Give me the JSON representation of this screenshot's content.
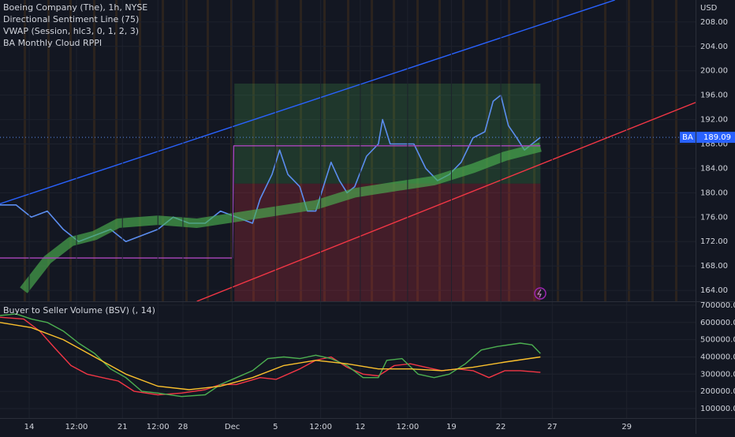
{
  "chart_data": [
    {
      "type": "line",
      "legend": [
        "Boeing Company (The), 1h, NYSE",
        "Directional Sentiment Line (75)",
        "VWAP (Session, hlc3, 0, 1, 2, 3)",
        "BA Monthly Cloud RPPI"
      ],
      "currency": "USD",
      "symbol": "BA",
      "xlim": [
        0,
        100
      ],
      "ylim": [
        162.2,
        211.6
      ],
      "yticks": [
        {
          "value": 208,
          "label": "208.00"
        },
        {
          "value": 204,
          "label": "204.00"
        },
        {
          "value": 200,
          "label": "200.00"
        },
        {
          "value": 196,
          "label": "196.00"
        },
        {
          "value": 192,
          "label": "192.00"
        },
        {
          "value": 188,
          "label": "188.00"
        },
        {
          "value": 184,
          "label": "184.00"
        },
        {
          "value": 180,
          "label": "180.00"
        },
        {
          "value": 176,
          "label": "176.00"
        },
        {
          "value": 172,
          "label": "172.00"
        },
        {
          "value": 168,
          "label": "168.00"
        },
        {
          "value": 164,
          "label": "164.00"
        }
      ],
      "zones": [
        {
          "color": "#4caf50",
          "x": [
            33.7,
            77.7
          ],
          "values": [
            197.9,
            181.5
          ]
        },
        {
          "color": "#f23645",
          "x": [
            33.7,
            77.7
          ],
          "values": [
            181.5,
            162.2
          ]
        }
      ],
      "series": [
        {
          "color": "#5b8def",
          "x": [
            0,
            2.3,
            4.5,
            6.8,
            9.1,
            11.3,
            13.6,
            15.9,
            18.1,
            20.4,
            22.7,
            24.9,
            27.2,
            29.5,
            31.7,
            34,
            36.3,
            37.4,
            39.1,
            40.2,
            41.4,
            43.1,
            44.2,
            45.4,
            46.5,
            47.6,
            48.8,
            49.9,
            51,
            52.7,
            54.4,
            55,
            56.1,
            57.8,
            59.5,
            61.2,
            62.9,
            64.6,
            66.3,
            68,
            69.7,
            70.9,
            72,
            73.1,
            74.3,
            75.4,
            76.5,
            77.7
          ],
          "values": [
            178,
            178,
            176,
            177,
            174,
            172,
            173,
            174,
            172,
            173,
            174,
            176,
            175,
            175,
            177,
            176,
            175,
            179,
            183,
            187,
            183,
            181,
            177,
            177,
            181,
            185,
            182,
            180,
            181,
            186,
            188,
            192,
            188,
            188,
            188,
            184,
            182,
            183,
            185,
            189,
            190,
            195,
            196,
            191,
            189,
            187,
            188,
            189.09
          ]
        },
        {
          "color": "#4caf50",
          "x": [
            3.4,
            6.8,
            10.2,
            13.6,
            17,
            22.7,
            28.3,
            34,
            39.7,
            45.4,
            51,
            56.7,
            62.4,
            68,
            72.6,
            77.7
          ],
          "values": [
            164,
            169,
            172,
            173,
            175,
            175.5,
            175,
            176,
            177,
            178,
            180,
            181,
            182,
            184,
            186,
            187.5
          ]
        },
        {
          "color": "#ab47bc",
          "x": [
            0,
            33.4,
            33.6,
            77.7
          ],
          "values": [
            169.3,
            169.3,
            187.7,
            187.7
          ]
        },
        {
          "color": "#2962ff",
          "x": [
            0,
            88.4
          ],
          "values": [
            178.2,
            211.6
          ]
        },
        {
          "color": "#f23645",
          "x": [
            28.3,
            100
          ],
          "values": [
            162.2,
            194.8
          ]
        }
      ]
    },
    {
      "type": "line",
      "title": "Buyer to Seller Volume (BSV) (, 14)",
      "xlim": [
        0,
        100
      ],
      "ylim": [
        45000,
        718000
      ],
      "yticks": [
        {
          "value": 700000,
          "label": "700000.00"
        },
        {
          "value": 600000,
          "label": "600000.00"
        },
        {
          "value": 500000,
          "label": "500000.00"
        },
        {
          "value": 400000,
          "label": "400000.00"
        },
        {
          "value": 300000,
          "label": "300000.00"
        },
        {
          "value": 200000,
          "label": "200000.00"
        },
        {
          "value": 100000,
          "label": "100000.00"
        }
      ],
      "xticks": [
        {
          "value": 4.2,
          "label": "14"
        },
        {
          "value": 11,
          "label": "12:00"
        },
        {
          "value": 17.6,
          "label": "21"
        },
        {
          "value": 22.7,
          "label": "12:00"
        },
        {
          "value": 26.3,
          "label": "28"
        },
        {
          "value": 33.4,
          "label": "Dec"
        },
        {
          "value": 39.6,
          "label": "5"
        },
        {
          "value": 46.1,
          "label": "12:00"
        },
        {
          "value": 51.8,
          "label": "12"
        },
        {
          "value": 58.6,
          "label": "12:00"
        },
        {
          "value": 64.9,
          "label": "19"
        },
        {
          "value": 72,
          "label": "22"
        },
        {
          "value": 79.4,
          "label": "27"
        },
        {
          "value": 90.1,
          "label": "29"
        }
      ],
      "series": [
        {
          "color": "#f23645",
          "x": [
            0,
            3.4,
            5.7,
            7.9,
            10.2,
            12.5,
            14.7,
            17,
            19.3,
            22.7,
            26.1,
            29.5,
            31.7,
            34,
            37.4,
            39.7,
            43.1,
            45.4,
            47.6,
            49.9,
            52.2,
            54.4,
            56.7,
            59,
            61.2,
            63.5,
            65.8,
            68,
            70.3,
            72.6,
            74.8,
            77.7
          ],
          "values": [
            630000,
            620000,
            550000,
            450000,
            350000,
            300000,
            280000,
            260000,
            200000,
            180000,
            190000,
            210000,
            240000,
            240000,
            280000,
            270000,
            330000,
            380000,
            400000,
            340000,
            300000,
            290000,
            350000,
            360000,
            340000,
            320000,
            330000,
            320000,
            280000,
            320000,
            320000,
            310000
          ]
        },
        {
          "color": "#4caf50",
          "x": [
            0,
            2.3,
            4.5,
            6.8,
            9.1,
            11.3,
            13.6,
            15.9,
            18.1,
            20.4,
            22.7,
            26.1,
            29.5,
            31.7,
            34,
            36.3,
            38.5,
            40.8,
            43.1,
            45.4,
            47.6,
            49.9,
            52.2,
            54.4,
            55.6,
            57.8,
            60.1,
            62.4,
            64.6,
            66.9,
            69.2,
            71.4,
            74.8,
            76.5,
            77.7
          ],
          "values": [
            640000,
            650000,
            620000,
            600000,
            550000,
            480000,
            420000,
            330000,
            280000,
            200000,
            190000,
            170000,
            180000,
            240000,
            280000,
            320000,
            390000,
            400000,
            390000,
            410000,
            390000,
            350000,
            280000,
            280000,
            380000,
            390000,
            300000,
            280000,
            300000,
            360000,
            440000,
            460000,
            480000,
            470000,
            420000
          ]
        },
        {
          "color": "#fbc02d",
          "x": [
            0,
            4.5,
            9.1,
            13.6,
            18.1,
            22.7,
            27.2,
            31.7,
            36.3,
            40.8,
            45.4,
            49.9,
            54.4,
            59,
            63.5,
            68,
            72.6,
            77.7
          ],
          "values": [
            600000,
            570000,
            500000,
            400000,
            300000,
            230000,
            210000,
            230000,
            280000,
            350000,
            380000,
            360000,
            330000,
            330000,
            320000,
            340000,
            370000,
            400000
          ]
        }
      ]
    }
  ]
}
